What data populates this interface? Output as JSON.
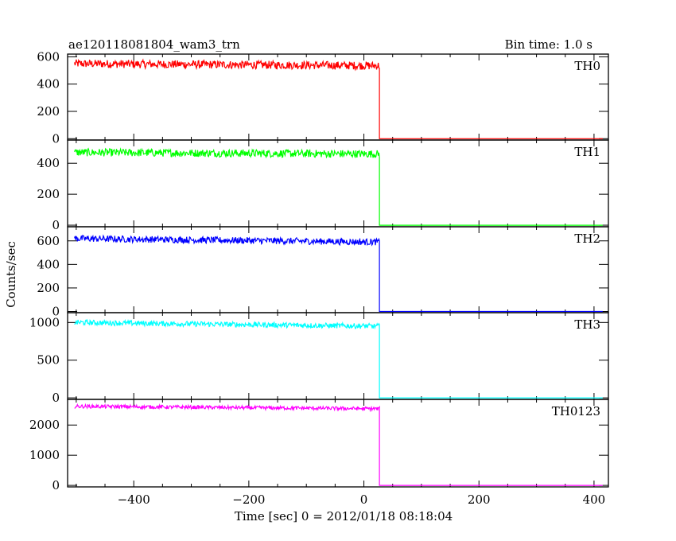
{
  "chart_data": {
    "type": "line",
    "title": "ae120118081804_wam3_trn",
    "subtitle": "Bin time: 1.0 s",
    "xlabel": "Time [sec] 0 = 2012/01/18 08:18:04",
    "ylabel": "Counts/sec",
    "xlim": [
      -515,
      425
    ],
    "x_ticks": [
      -400,
      -200,
      0,
      200,
      400
    ],
    "step_time": 27,
    "grid": false,
    "panels": [
      {
        "name": "TH0",
        "color": "#ff0000",
        "ylim": [
          -10,
          620
        ],
        "y_ticks": [
          0,
          200,
          400,
          600
        ],
        "level_start": 550,
        "level_end": 535,
        "noise": 30,
        "after": 0
      },
      {
        "name": "TH1",
        "color": "#00ff00",
        "ylim": [
          -10,
          550
        ],
        "y_ticks": [
          0,
          200,
          400
        ],
        "level_start": 470,
        "level_end": 460,
        "noise": 25,
        "after": 0
      },
      {
        "name": "TH2",
        "color": "#0000ff",
        "ylim": [
          -10,
          720
        ],
        "y_ticks": [
          0,
          200,
          400,
          600
        ],
        "level_start": 620,
        "level_end": 590,
        "noise": 28,
        "after": 0
      },
      {
        "name": "TH3",
        "color": "#00ffff",
        "ylim": [
          -20,
          1130
        ],
        "y_ticks": [
          0,
          500,
          1000
        ],
        "level_start": 1000,
        "level_end": 950,
        "noise": 35,
        "after": 0
      },
      {
        "name": "TH0123",
        "color": "#ff00ff",
        "ylim": [
          -50,
          2850
        ],
        "y_ticks": [
          0,
          1000,
          2000
        ],
        "level_start": 2620,
        "level_end": 2540,
        "noise": 60,
        "after": 0
      }
    ]
  }
}
